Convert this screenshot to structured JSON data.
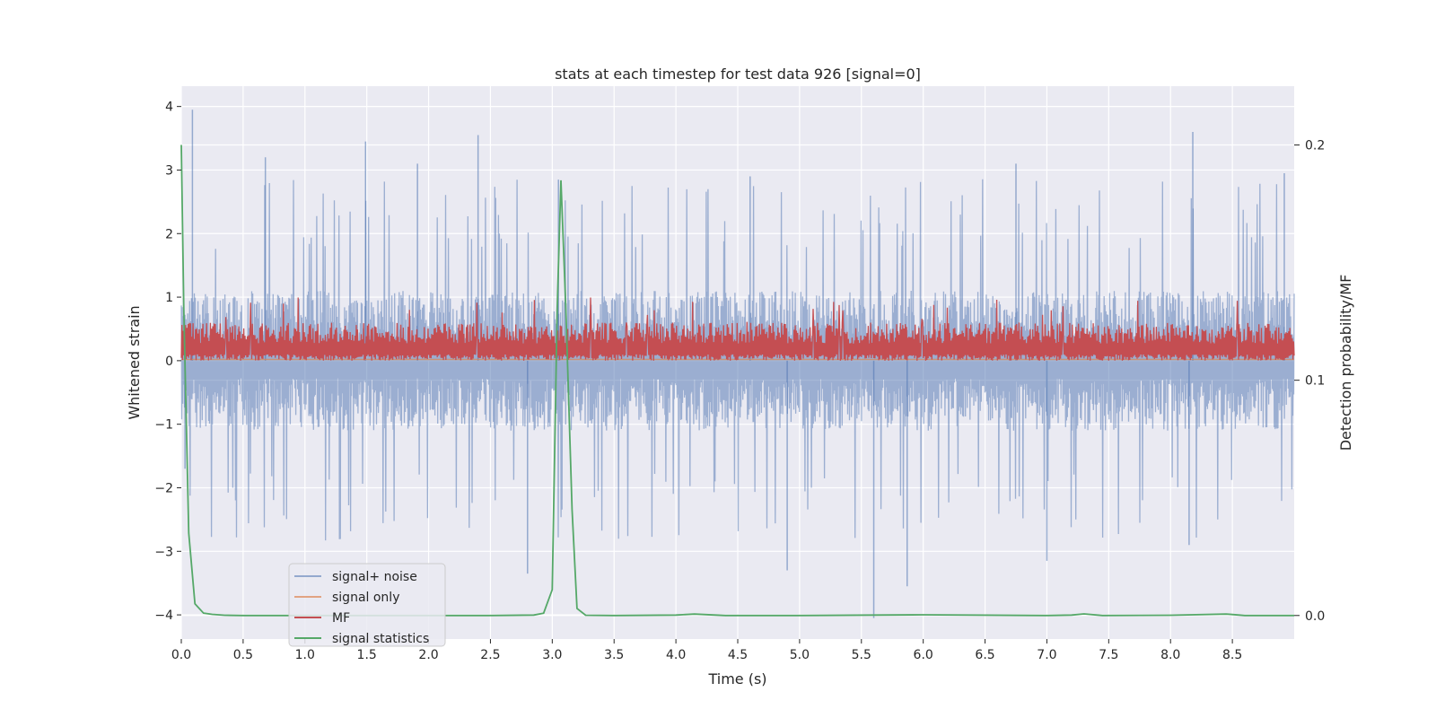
{
  "chart_data": {
    "type": "line",
    "title": "stats at each timestep for test data 926 [signal=0]",
    "xlabel": "Time (s)",
    "ylabel": "Whitened strain",
    "y2label": "Detection probability/MF",
    "xlim": [
      0,
      9
    ],
    "ylim": [
      -4.38,
      4.32
    ],
    "y2lim": [
      -0.01,
      0.225
    ],
    "xticks": [
      "0.0",
      "0.5",
      "1.0",
      "1.5",
      "2.0",
      "2.5",
      "3.0",
      "3.5",
      "4.0",
      "4.5",
      "5.0",
      "5.5",
      "6.0",
      "6.5",
      "7.0",
      "7.5",
      "8.0",
      "8.5"
    ],
    "xtick_values": [
      0,
      0.5,
      1,
      1.5,
      2,
      2.5,
      3,
      3.5,
      4,
      4.5,
      5,
      5.5,
      6,
      6.5,
      7,
      7.5,
      8,
      8.5
    ],
    "yticks": [
      "4",
      "3",
      "2",
      "1",
      "0",
      "−1",
      "−2",
      "−3",
      "−4"
    ],
    "ytick_values": [
      4,
      3,
      2,
      1,
      0,
      -1,
      -2,
      -3,
      -4
    ],
    "y2ticks": [
      "0.2",
      "0.1",
      "0.0"
    ],
    "y2tick_values": [
      0.2,
      0.1,
      0.0
    ],
    "grid": true,
    "legend_position": "lower-left",
    "series": [
      {
        "name": "signal+ noise",
        "color": "#4c72b0",
        "axis": "left",
        "style": "dense noise band",
        "typical_abs": 1.1,
        "peak_abs": 2.2,
        "spikes": [
          [
            0.09,
            3.95
          ],
          [
            0.03,
            -1.7
          ],
          [
            0.68,
            3.2
          ],
          [
            1.49,
            3.45
          ],
          [
            1.91,
            3.1
          ],
          [
            2.4,
            3.55
          ],
          [
            2.8,
            -3.35
          ],
          [
            3.05,
            2.85
          ],
          [
            4.6,
            2.9
          ],
          [
            4.9,
            -3.3
          ],
          [
            5.6,
            -4.05
          ],
          [
            5.87,
            -3.55
          ],
          [
            6.75,
            3.1
          ],
          [
            7.0,
            -3.15
          ],
          [
            8.18,
            3.6
          ],
          [
            8.15,
            -2.9
          ],
          [
            8.92,
            2.95
          ]
        ]
      },
      {
        "name": "signal only",
        "color": "#dd8452",
        "axis": "left",
        "x": [
          0,
          9
        ],
        "y": [
          0.02,
          0.02
        ]
      },
      {
        "name": "MF",
        "color": "#c44e52",
        "axis": "left",
        "style": "dense band",
        "low": 0.0,
        "high": 0.6,
        "peak": 1.0
      },
      {
        "name": "signal statistics",
        "color": "#55a868",
        "axis": "right",
        "x": [
          0.0,
          0.02,
          0.06,
          0.11,
          0.18,
          0.25,
          0.35,
          0.5,
          1.0,
          2.0,
          2.5,
          2.85,
          2.93,
          3.0,
          3.04,
          3.07,
          3.11,
          3.16,
          3.2,
          3.27,
          3.5,
          4.0,
          4.15,
          4.4,
          5.0,
          6.0,
          7.0,
          7.2,
          7.3,
          7.45,
          8.0,
          8.45,
          8.5,
          8.6,
          9.0
        ],
        "y": [
          0.2,
          0.13,
          0.035,
          0.005,
          0.001,
          0.0005,
          0.0001,
          0.0,
          0.0,
          0.0,
          0.0,
          0.0002,
          0.001,
          0.011,
          0.13,
          0.185,
          0.13,
          0.045,
          0.003,
          0.0001,
          0.0,
          0.0002,
          0.0006,
          0.0,
          0.0,
          0.0003,
          0.0,
          0.0002,
          0.0007,
          0.0,
          0.0001,
          0.0006,
          0.0004,
          0.0,
          0.0
        ]
      }
    ]
  }
}
